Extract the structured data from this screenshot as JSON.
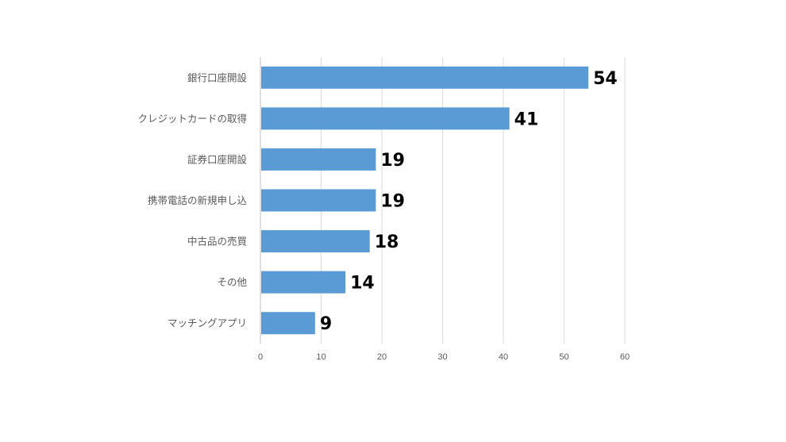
{
  "chart_data": {
    "type": "bar",
    "orientation": "horizontal",
    "title": "",
    "xlabel": "",
    "ylabel": "",
    "categories": [
      "銀行口座開設",
      "クレジットカードの取得",
      "証券口座開設",
      "携帯電話の新規申し込",
      "中古品の売買",
      "その他",
      "マッチングアプリ"
    ],
    "category_labels": [
      "銀行口座開設",
      "クレジットカードの取得",
      "証券口座開設",
      "携帯電話の新規申し込",
      "中古品の売買",
      "その他",
      "マッチングアプリ"
    ],
    "values": [
      54,
      41,
      19,
      19,
      18,
      14,
      9
    ],
    "xlim": [
      0,
      60
    ],
    "xticks": [
      "0",
      "10",
      "20",
      "30",
      "40",
      "50",
      "60"
    ],
    "grid": true,
    "legend": "none",
    "bar_color": "#5B9BD5",
    "grid_color": "#D9D9D9"
  }
}
